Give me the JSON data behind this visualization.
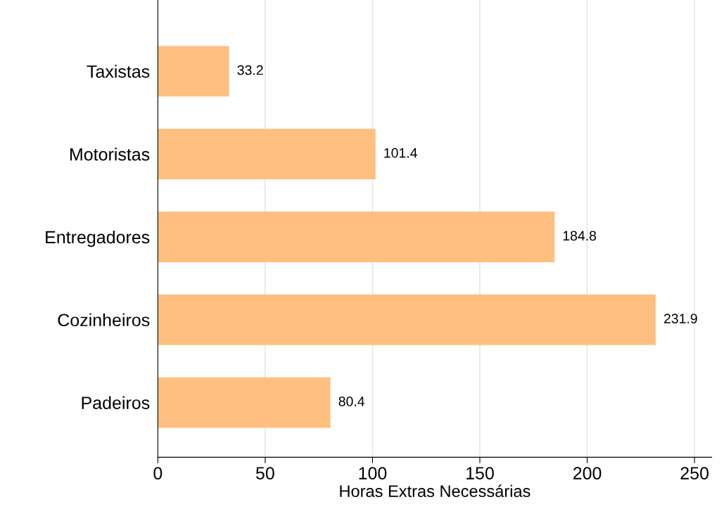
{
  "chart_data": {
    "type": "bar",
    "orientation": "horizontal",
    "categories": [
      "Taxistas",
      "Motoristas",
      "Entregadores",
      "Cozinheiros",
      "Padeiros"
    ],
    "values": [
      33.2,
      101.4,
      184.8,
      231.9,
      80.4
    ],
    "color": "#ffbf80",
    "xlabel": "Horas Extras Necessárias",
    "xlim": [
      0,
      258
    ],
    "xticks": [
      0,
      50,
      100,
      150,
      200,
      250
    ],
    "grid": "x",
    "data_labels": true,
    "legend": false
  }
}
